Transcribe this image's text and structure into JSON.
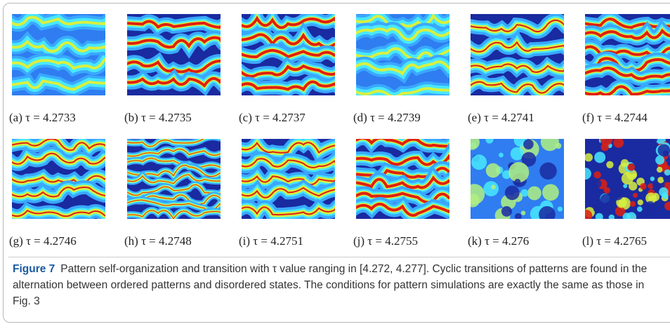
{
  "panels": [
    {
      "label": "(a) τ = 4.2733"
    },
    {
      "label": "(b) τ = 4.2735"
    },
    {
      "label": "(c) τ = 4.2737"
    },
    {
      "label": "(d) τ = 4.2739"
    },
    {
      "label": "(e) τ = 4.2741"
    },
    {
      "label": "(f) τ = 4.2744"
    },
    {
      "label": "(g) τ = 4.2746"
    },
    {
      "label": "(h) τ = 4.2748"
    },
    {
      "label": "(i) τ = 4.2751"
    },
    {
      "label": "(j) τ = 4.2755"
    },
    {
      "label": "(k) τ = 4.276"
    },
    {
      "label": "(l) τ = 4.2765"
    }
  ],
  "caption": {
    "label": "Figure 7",
    "text": "Pattern self-organization and transition with τ value ranging in [4.272, 4.277]. Cyclic transitions of patterns are found in the alternation between ordered patterns and disordered states. The conditions for pattern simulations are exactly the same as those in Fig. 3"
  }
}
